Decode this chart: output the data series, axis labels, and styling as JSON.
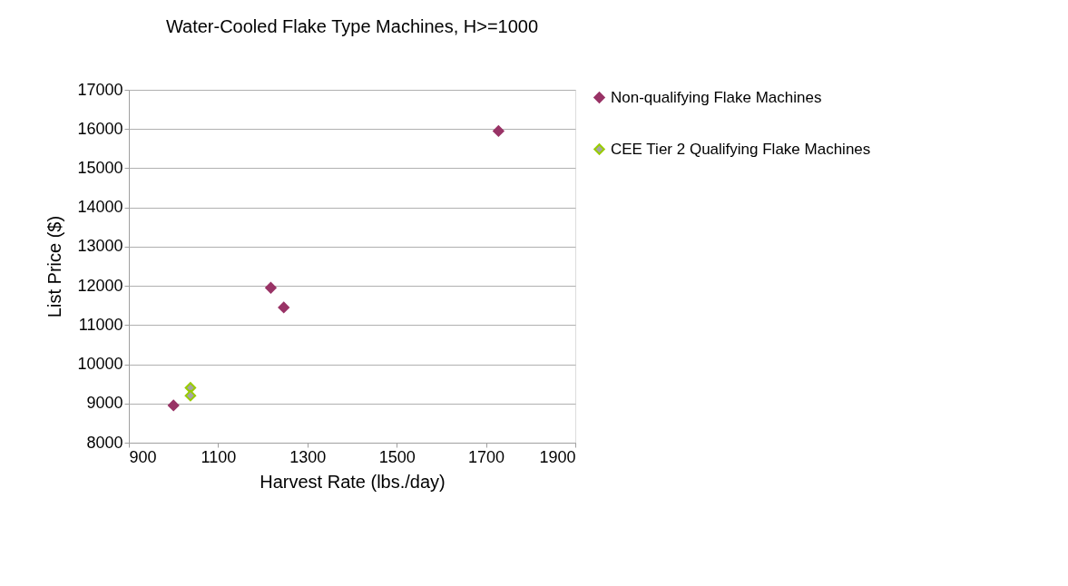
{
  "chart_data": {
    "type": "scatter",
    "title": "Water-Cooled Flake Type Machines, H>=1000",
    "xlabel": "Harvest Rate (lbs./day)",
    "ylabel": "List Price ($)",
    "series": [
      {
        "name": "Non-qualifying Flake Machines",
        "color": "#993366",
        "x": [
          1000,
          1218,
          1247,
          1728
        ],
        "values": [
          8950,
          11950,
          11450,
          15950
        ]
      },
      {
        "name": "CEE Tier 2 Qualifying Flake Machines",
        "color": "#99cc00",
        "x": [
          1038,
          1038
        ],
        "values": [
          9400,
          9200
        ]
      }
    ],
    "xlim": [
      900,
      1900
    ],
    "xticks": [
      900,
      1100,
      1300,
      1500,
      1700,
      1900
    ],
    "ylim": [
      8000,
      17000
    ],
    "yticks": [
      8000,
      9000,
      10000,
      11000,
      12000,
      13000,
      14000,
      15000,
      16000,
      17000
    ],
    "grid": "y",
    "legend": "right",
    "marker": "diamond"
  }
}
